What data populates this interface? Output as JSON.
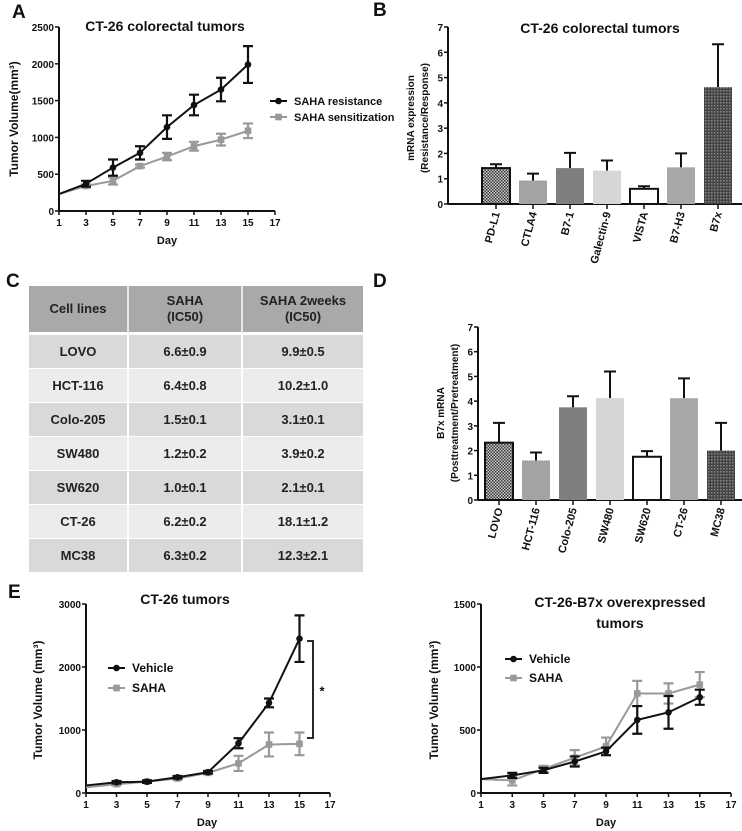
{
  "panels": {
    "a": "A",
    "b": "B",
    "c": "C",
    "d": "D",
    "e": "E"
  },
  "chart_data": [
    {
      "id": "A",
      "type": "line",
      "title": [
        "CT-26 colorectal tumors"
      ],
      "xlabel": "Day",
      "ylabel": "Tumor Volume(mm³)",
      "xlim": [
        1,
        17
      ],
      "ylim": [
        0,
        2500
      ],
      "xticks": [
        1,
        3,
        5,
        7,
        9,
        11,
        13,
        15,
        17
      ],
      "yticks": [
        0,
        500,
        1000,
        1500,
        2000,
        2500
      ],
      "series": [
        {
          "name": "SAHA resistance",
          "color": "#111111",
          "marker": "circle",
          "x": [
            1,
            3,
            5,
            7,
            9,
            11,
            13,
            15
          ],
          "y": [
            230,
            370,
            590,
            790,
            1140,
            1440,
            1650,
            1990
          ],
          "err": [
            0,
            40,
            110,
            90,
            160,
            140,
            160,
            250
          ]
        },
        {
          "name": "SAHA sensitization",
          "color": "#999999",
          "marker": "square",
          "x": [
            1,
            3,
            5,
            7,
            9,
            11,
            13,
            15
          ],
          "y": [
            230,
            340,
            410,
            610,
            740,
            880,
            970,
            1090
          ],
          "err": [
            0,
            20,
            50,
            20,
            50,
            60,
            80,
            100
          ]
        }
      ]
    },
    {
      "id": "B",
      "type": "bar",
      "title": [
        "CT-26 colorectal tumors"
      ],
      "ylabel": [
        "mRNA expression",
        "(Resistance/Response)"
      ],
      "ylim": [
        0,
        7
      ],
      "yticks": [
        0,
        1,
        2,
        3,
        4,
        5,
        6,
        7
      ],
      "categories": [
        "PD-L1",
        "CTLA4",
        "B7-1",
        "Galectin-9",
        "VISTA",
        "B7-H3",
        "B7x"
      ],
      "values": [
        1.42,
        0.93,
        1.42,
        1.32,
        0.6,
        1.45,
        4.62
      ],
      "err": [
        0.15,
        0.27,
        0.6,
        0.4,
        0.1,
        0.55,
        1.7
      ],
      "fills": [
        "checker",
        "#a3a3a3",
        "#7f7f7f",
        "#d6d6d6",
        "white",
        "#a8a8a8",
        "grid"
      ]
    },
    {
      "id": "D",
      "type": "bar",
      "title": [],
      "ylabel": [
        "B7x mRNA",
        "(Posttreatment/Pretreatment)"
      ],
      "ylim": [
        0,
        7
      ],
      "yticks": [
        0,
        1,
        2,
        3,
        4,
        5,
        6,
        7
      ],
      "categories": [
        "LOVO",
        "HCT-116",
        "Colo-205",
        "SW480",
        "SW620",
        "CT-26",
        "MC38"
      ],
      "values": [
        2.32,
        1.6,
        3.75,
        4.12,
        1.75,
        4.12,
        2.0
      ],
      "err": [
        0.8,
        0.32,
        0.45,
        1.08,
        0.23,
        0.8,
        1.12
      ],
      "fills": [
        "checker",
        "#a3a3a3",
        "#7f7f7f",
        "#d6d6d6",
        "white",
        "#a8a8a8",
        "grid"
      ]
    },
    {
      "id": "E1",
      "type": "line",
      "title": [
        "CT-26 tumors"
      ],
      "xlabel": "Day",
      "ylabel": "Tumor Volume (mm³)",
      "xlim": [
        1,
        17
      ],
      "ylim": [
        0,
        3000
      ],
      "xticks": [
        1,
        3,
        5,
        7,
        9,
        11,
        13,
        15,
        17
      ],
      "yticks": [
        0,
        1000,
        2000,
        3000
      ],
      "annotation": "*",
      "series": [
        {
          "name": "Vehicle",
          "color": "#111111",
          "marker": "circle",
          "x": [
            1,
            3,
            5,
            7,
            9,
            11,
            13,
            15
          ],
          "y": [
            120,
            170,
            180,
            250,
            330,
            790,
            1430,
            2450
          ],
          "err": [
            0,
            20,
            20,
            20,
            20,
            80,
            70,
            370
          ]
        },
        {
          "name": "SAHA",
          "color": "#999999",
          "marker": "square",
          "x": [
            1,
            3,
            5,
            7,
            9,
            11,
            13,
            15
          ],
          "y": [
            90,
            140,
            180,
            230,
            320,
            470,
            770,
            780
          ],
          "err": [
            0,
            20,
            20,
            20,
            20,
            120,
            190,
            180
          ]
        }
      ]
    },
    {
      "id": "E2",
      "type": "line",
      "title": [
        "CT-26-B7x overexpressed",
        "tumors"
      ],
      "xlabel": "Day",
      "ylabel": "Tumor Volume (mm³)",
      "xlim": [
        1,
        17
      ],
      "ylim": [
        0,
        1500
      ],
      "xticks": [
        1,
        3,
        5,
        7,
        9,
        11,
        13,
        15,
        17
      ],
      "yticks": [
        0,
        500,
        1000,
        1500
      ],
      "series": [
        {
          "name": "Vehicle",
          "color": "#111111",
          "marker": "circle",
          "x": [
            1,
            3,
            5,
            7,
            9,
            11,
            13,
            15
          ],
          "y": [
            110,
            140,
            180,
            250,
            330,
            580,
            640,
            760
          ],
          "err": [
            0,
            20,
            20,
            40,
            30,
            110,
            130,
            60
          ]
        },
        {
          "name": "SAHA",
          "color": "#999999",
          "marker": "square",
          "x": [
            1,
            3,
            5,
            7,
            9,
            11,
            13,
            15
          ],
          "y": [
            110,
            100,
            190,
            280,
            370,
            790,
            790,
            860
          ],
          "err": [
            0,
            40,
            25,
            60,
            70,
            100,
            80,
            100
          ]
        }
      ]
    }
  ],
  "table": {
    "type": "table",
    "headers": [
      [
        "Cell lines"
      ],
      [
        "SAHA",
        "(IC50)"
      ],
      [
        "SAHA 2weeks",
        "(IC50)"
      ]
    ],
    "rows": [
      [
        "LOVO",
        "6.6±0.9",
        "9.9±0.5"
      ],
      [
        "HCT-116",
        "6.4±0.8",
        "10.2±1.0"
      ],
      [
        "Colo-205",
        "1.5±0.1",
        "3.1±0.1"
      ],
      [
        "SW480",
        "1.2±0.2",
        "3.9±0.2"
      ],
      [
        "SW620",
        "1.0±0.1",
        "2.1±0.1"
      ],
      [
        "CT-26",
        "6.2±0.2",
        "18.1±1.2"
      ],
      [
        "MC38",
        "6.3±0.2",
        "12.3±2.1"
      ]
    ]
  }
}
